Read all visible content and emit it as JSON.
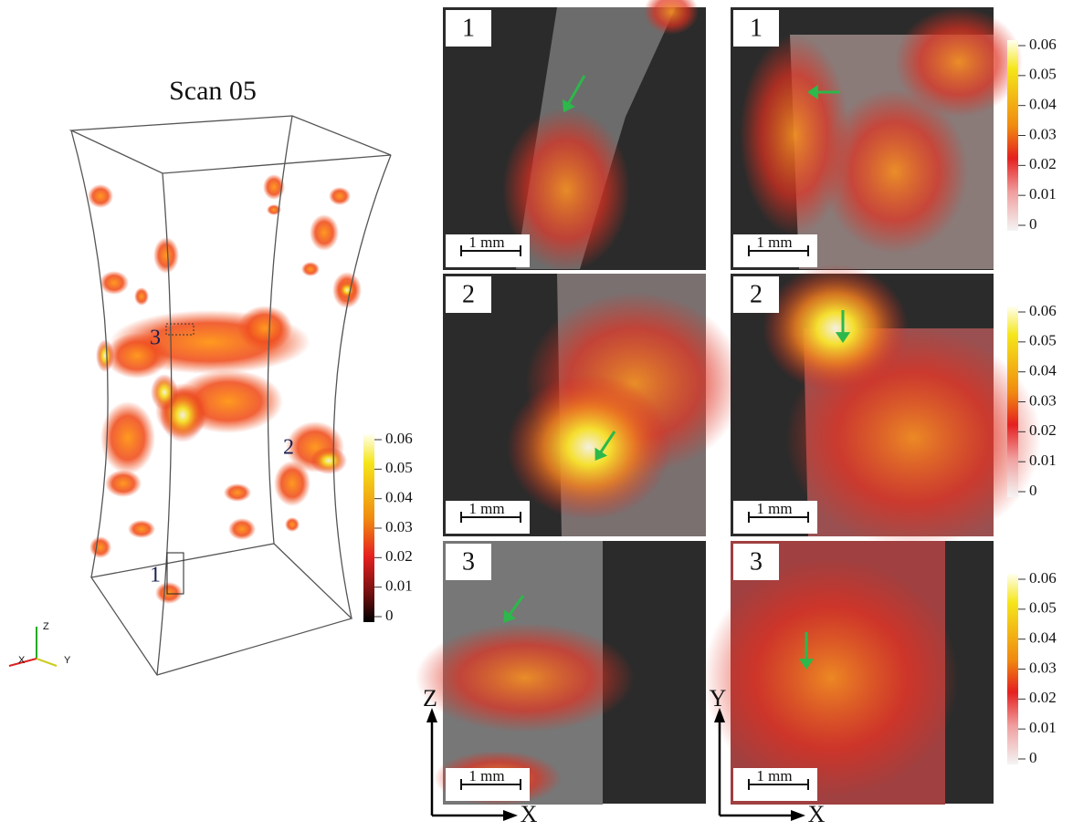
{
  "volume": {
    "title": "Scan 05",
    "region_labels": [
      "1",
      "2",
      "3"
    ],
    "triad": [
      "Z",
      "X",
      "Y"
    ],
    "colorbar_ticks": [
      0.06,
      0.05,
      0.04,
      0.03,
      0.02,
      0.01,
      0
    ]
  },
  "slices": {
    "rows": [
      {
        "label": "1",
        "scale_bars": [
          "1 mm",
          "1 mm"
        ],
        "colorbar_ticks": [
          0.06,
          0.05,
          0.04,
          0.03,
          0.02,
          0.01,
          0
        ]
      },
      {
        "label": "2",
        "scale_bars": [
          "1 mm",
          "1 mm"
        ],
        "colorbar_ticks": [
          0.06,
          0.05,
          0.04,
          0.03,
          0.02,
          0.01,
          0
        ]
      },
      {
        "label": "3",
        "scale_bars": [
          "1 mm",
          "1 mm"
        ],
        "colorbar_ticks": [
          0.06,
          0.05,
          0.04,
          0.03,
          0.02,
          0.01,
          0
        ]
      }
    ]
  },
  "axes": {
    "xz": [
      "Z",
      "X"
    ],
    "xy": [
      "Y",
      "X"
    ]
  }
}
